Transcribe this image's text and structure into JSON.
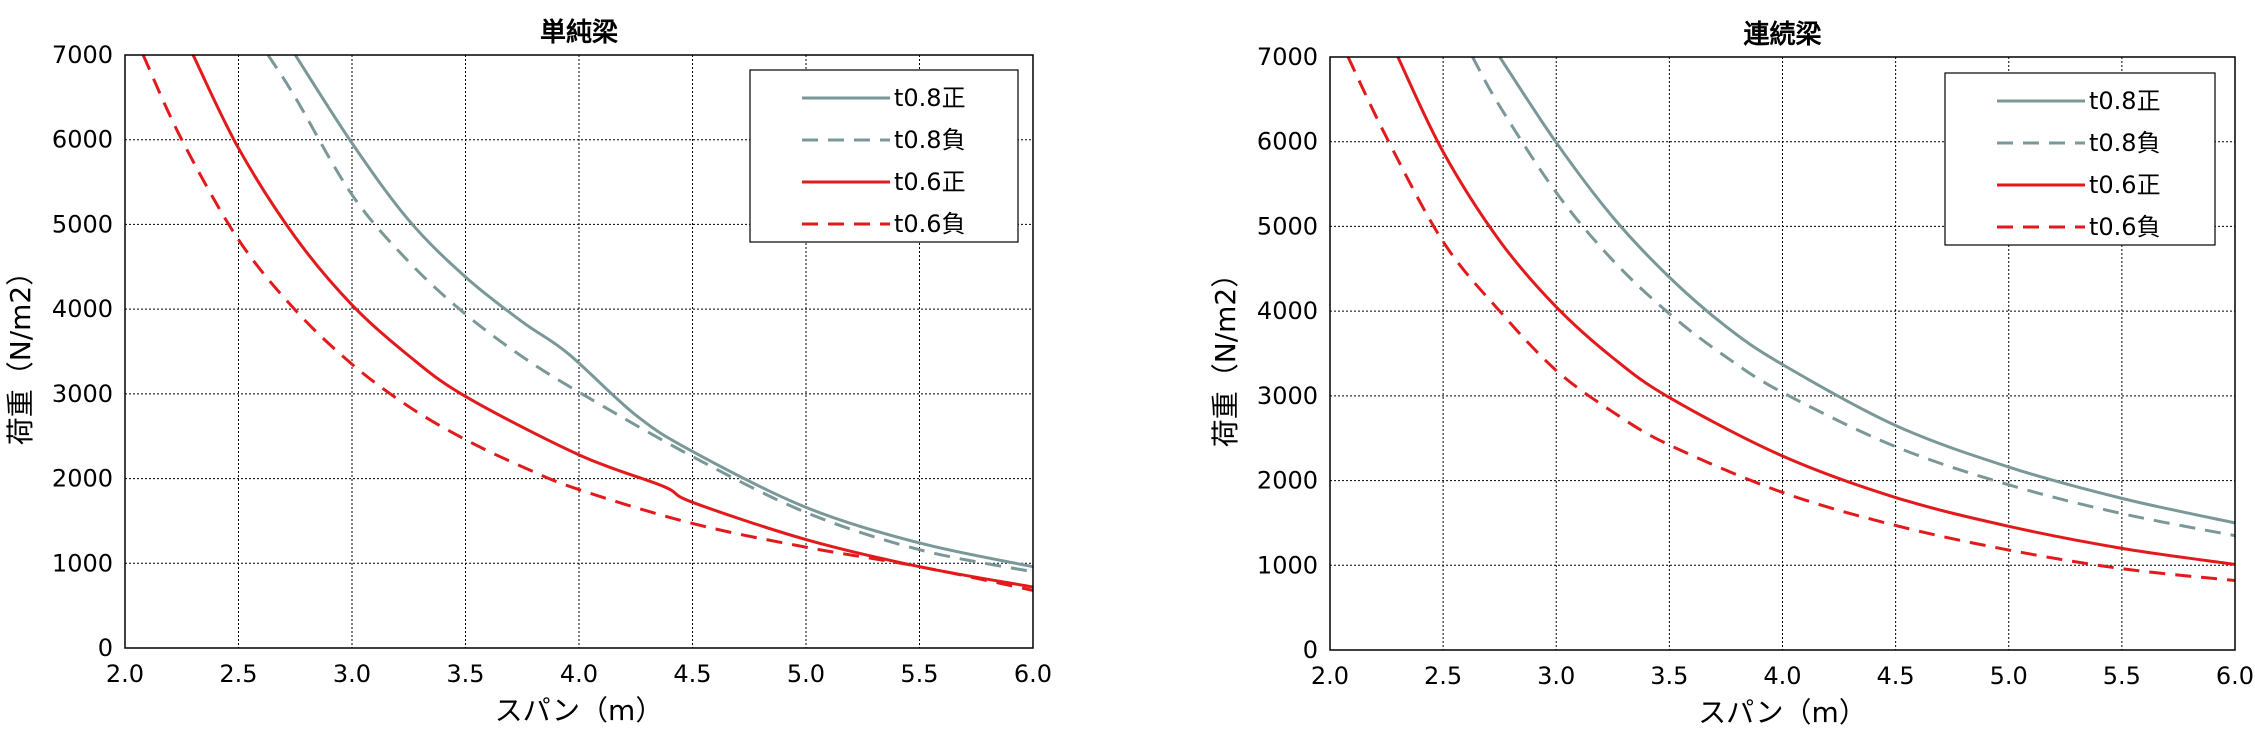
{
  "chart_data": [
    {
      "type": "line",
      "title": "単純梁",
      "xlabel": "スパン（m）",
      "ylabel": "荷重（N/m2）",
      "xlim": [
        2.0,
        6.0
      ],
      "ylim": [
        0,
        7000
      ],
      "xticks": [
        "2.0",
        "2.5",
        "3.0",
        "3.5",
        "4.0",
        "4.5",
        "5.0",
        "5.5",
        "6.0"
      ],
      "yticks": [
        "0",
        "1000",
        "2000",
        "3000",
        "4000",
        "5000",
        "6000",
        "7000"
      ],
      "grid": true,
      "legend": "top-right",
      "series": [
        {
          "name": "t0.8正",
          "color": "#7a9898",
          "dash": "solid",
          "x": [
            2.75,
            3.0,
            3.25,
            3.5,
            3.75,
            3.95,
            4.25,
            4.5,
            5.0,
            5.5,
            6.0
          ],
          "y": [
            7000,
            5960,
            5050,
            4380,
            3850,
            3480,
            2750,
            2320,
            1660,
            1240,
            960
          ]
        },
        {
          "name": "t0.8負",
          "color": "#7a9898",
          "dash": "dashed",
          "x": [
            2.63,
            2.75,
            3.0,
            3.25,
            3.5,
            3.75,
            4.0,
            4.5,
            5.0,
            5.5,
            6.0
          ],
          "y": [
            7000,
            6500,
            5350,
            4560,
            3940,
            3440,
            3020,
            2260,
            1600,
            1160,
            900
          ]
        },
        {
          "name": "t0.6正",
          "color": "#e31a1c",
          "dash": "solid",
          "x": [
            2.3,
            2.5,
            2.75,
            3.0,
            3.25,
            3.5,
            4.0,
            4.37,
            4.5,
            5.0,
            5.5,
            6.0
          ],
          "y": [
            7000,
            5900,
            4850,
            4050,
            3450,
            2970,
            2280,
            1910,
            1720,
            1280,
            960,
            720
          ]
        },
        {
          "name": "t0.6負",
          "color": "#e31a1c",
          "dash": "dashed",
          "x": [
            2.08,
            2.25,
            2.5,
            2.75,
            3.0,
            3.25,
            3.5,
            3.75,
            4.0,
            4.5,
            5.0,
            5.5,
            6.0
          ],
          "y": [
            7000,
            6000,
            4820,
            3990,
            3350,
            2850,
            2460,
            2140,
            1870,
            1470,
            1190,
            960,
            680
          ]
        }
      ]
    },
    {
      "type": "line",
      "title": "連続梁",
      "xlabel": "スパン（m）",
      "ylabel": "荷重（N/m2）",
      "xlim": [
        2.0,
        6.0
      ],
      "ylim": [
        0,
        7000
      ],
      "xticks": [
        "2.0",
        "2.5",
        "3.0",
        "3.5",
        "4.0",
        "4.5",
        "5.0",
        "5.5",
        "6.0"
      ],
      "yticks": [
        "0",
        "1000",
        "2000",
        "3000",
        "4000",
        "5000",
        "6000",
        "7000"
      ],
      "grid": true,
      "legend": "top-right",
      "series": [
        {
          "name": "t0.8正",
          "color": "#7a9898",
          "dash": "solid",
          "x": [
            2.75,
            3.0,
            3.25,
            3.5,
            3.75,
            4.0,
            4.5,
            5.0,
            5.5,
            6.0
          ],
          "y": [
            7000,
            5990,
            5110,
            4400,
            3820,
            3370,
            2650,
            2160,
            1790,
            1500
          ]
        },
        {
          "name": "t0.8負",
          "color": "#7a9898",
          "dash": "dashed",
          "x": [
            2.63,
            2.75,
            3.0,
            3.25,
            3.5,
            3.75,
            4.0,
            4.5,
            5.0,
            5.5,
            6.0
          ],
          "y": [
            7000,
            6420,
            5400,
            4600,
            3970,
            3460,
            3040,
            2400,
            1950,
            1610,
            1350
          ]
        },
        {
          "name": "t0.6正",
          "color": "#e31a1c",
          "dash": "solid",
          "x": [
            2.3,
            2.5,
            2.75,
            3.0,
            3.25,
            3.5,
            4.0,
            4.5,
            5.0,
            5.5,
            6.0
          ],
          "y": [
            7000,
            5880,
            4830,
            4050,
            3450,
            2980,
            2290,
            1800,
            1460,
            1200,
            1010
          ]
        },
        {
          "name": "t0.6負",
          "color": "#e31a1c",
          "dash": "dashed",
          "x": [
            2.08,
            2.25,
            2.5,
            2.75,
            3.0,
            3.25,
            3.5,
            4.0,
            4.5,
            5.0,
            5.5,
            6.0
          ],
          "y": [
            7000,
            6050,
            4820,
            4000,
            3300,
            2810,
            2420,
            1860,
            1470,
            1180,
            960,
            820
          ]
        }
      ]
    }
  ]
}
